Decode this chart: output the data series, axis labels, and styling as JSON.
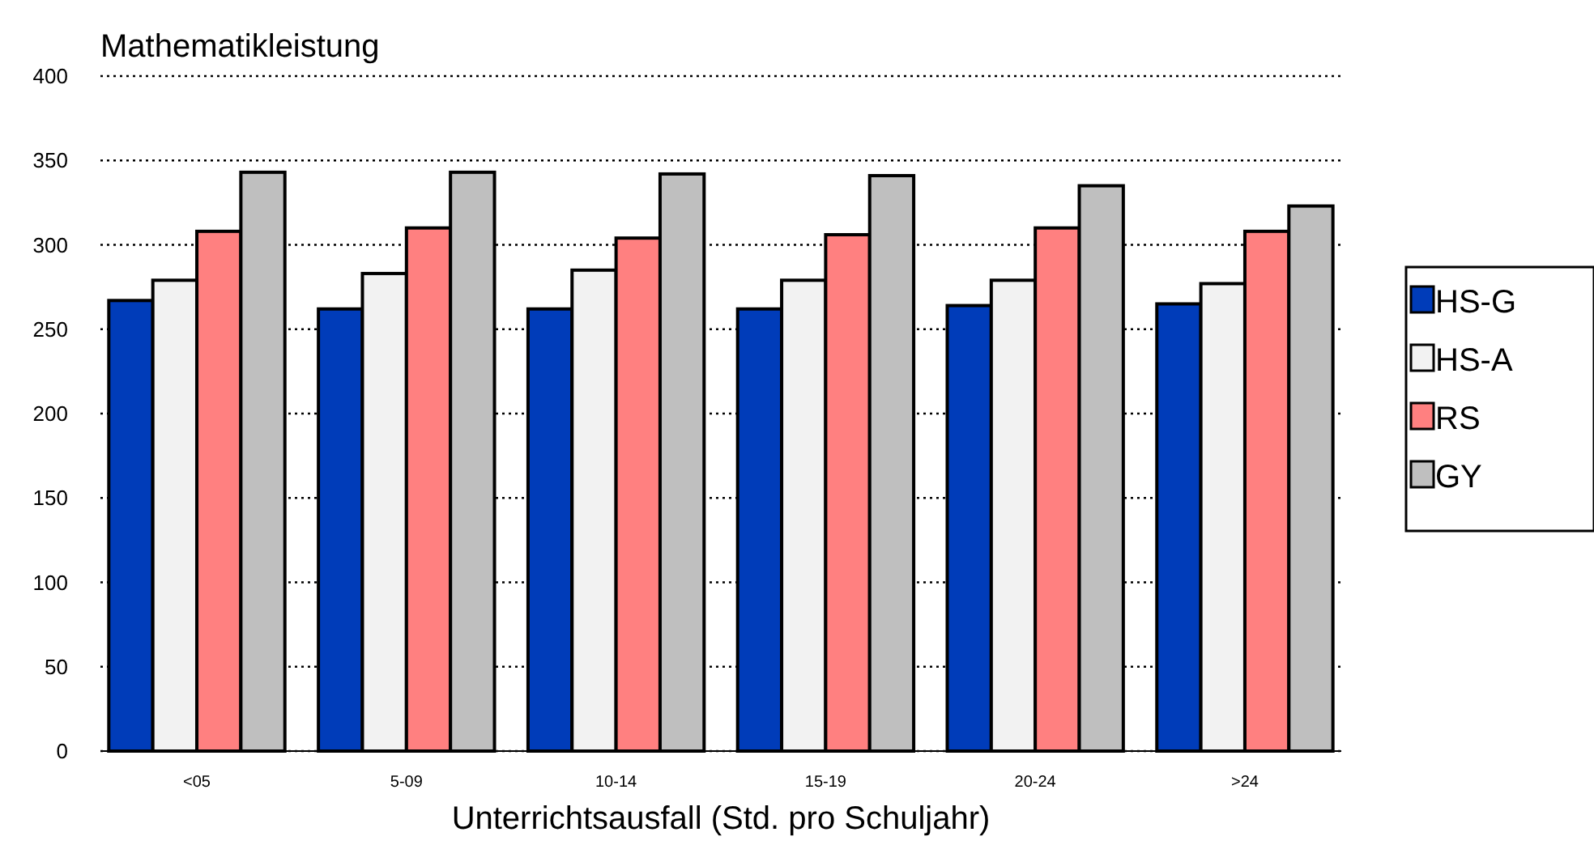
{
  "chart_data": {
    "type": "bar",
    "title": "Mathematikleistung",
    "xlabel": "Unterrichtsausfall (Std. pro Schuljahr)",
    "categories": [
      "<05",
      "5-09",
      "10-14",
      "15-19",
      "20-24",
      ">24"
    ],
    "series": [
      {
        "name": "HS-G",
        "color": "#003cb9",
        "values": [
          267,
          262,
          262,
          262,
          264,
          265
        ]
      },
      {
        "name": "HS-A",
        "color": "#f2f2f2",
        "values": [
          279,
          283,
          285,
          279,
          279,
          277
        ]
      },
      {
        "name": "RS",
        "color": "#ff8080",
        "values": [
          308,
          310,
          304,
          306,
          310,
          308
        ]
      },
      {
        "name": "GY",
        "color": "#bfbfbf",
        "values": [
          343,
          343,
          342,
          341,
          335,
          323
        ]
      }
    ],
    "ylim": [
      0,
      400
    ],
    "yticks": [
      0,
      50,
      100,
      150,
      200,
      250,
      300,
      350,
      400
    ],
    "grid": "y",
    "legend": "right"
  }
}
